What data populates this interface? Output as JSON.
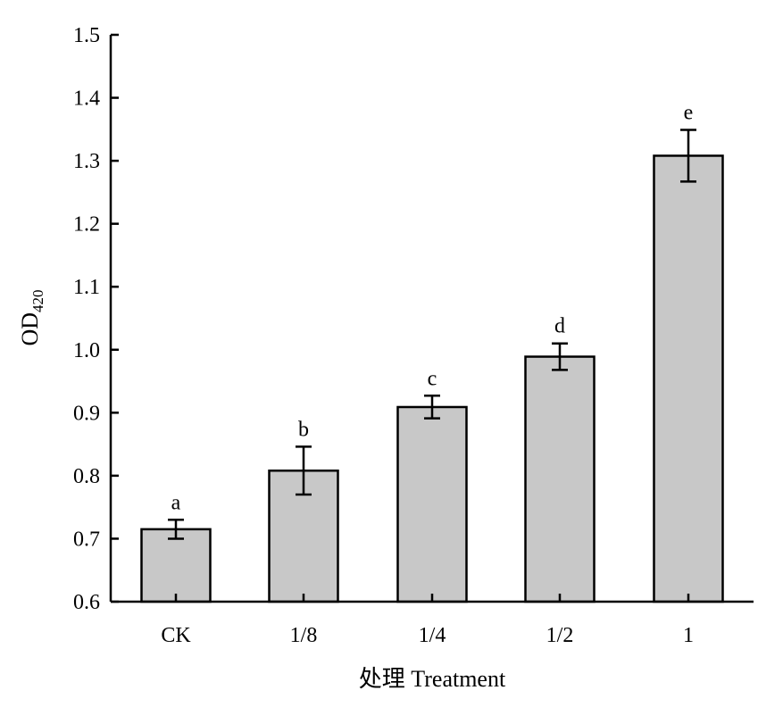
{
  "chart_data": {
    "type": "bar",
    "categories": [
      "CK",
      "1/8",
      "1/4",
      "1/2",
      "1"
    ],
    "values": [
      0.715,
      0.808,
      0.909,
      0.989,
      1.308
    ],
    "errors": [
      0.015,
      0.038,
      0.018,
      0.021,
      0.041
    ],
    "significance_letters": [
      "a",
      "b",
      "c",
      "d",
      "e"
    ],
    "xlabel": "处理 Treatment",
    "ylabel": {
      "main": "OD",
      "subscript": "420"
    },
    "ylim": [
      0.6,
      1.5
    ],
    "yticks": [
      "0.6",
      "0.7",
      "0.8",
      "0.9",
      "1.0",
      "1.1",
      "1.2",
      "1.3",
      "1.4",
      "1.5"
    ],
    "grid": false,
    "legend": "none",
    "bar_color": "#c8c8c8",
    "edge_color": "#000000"
  }
}
